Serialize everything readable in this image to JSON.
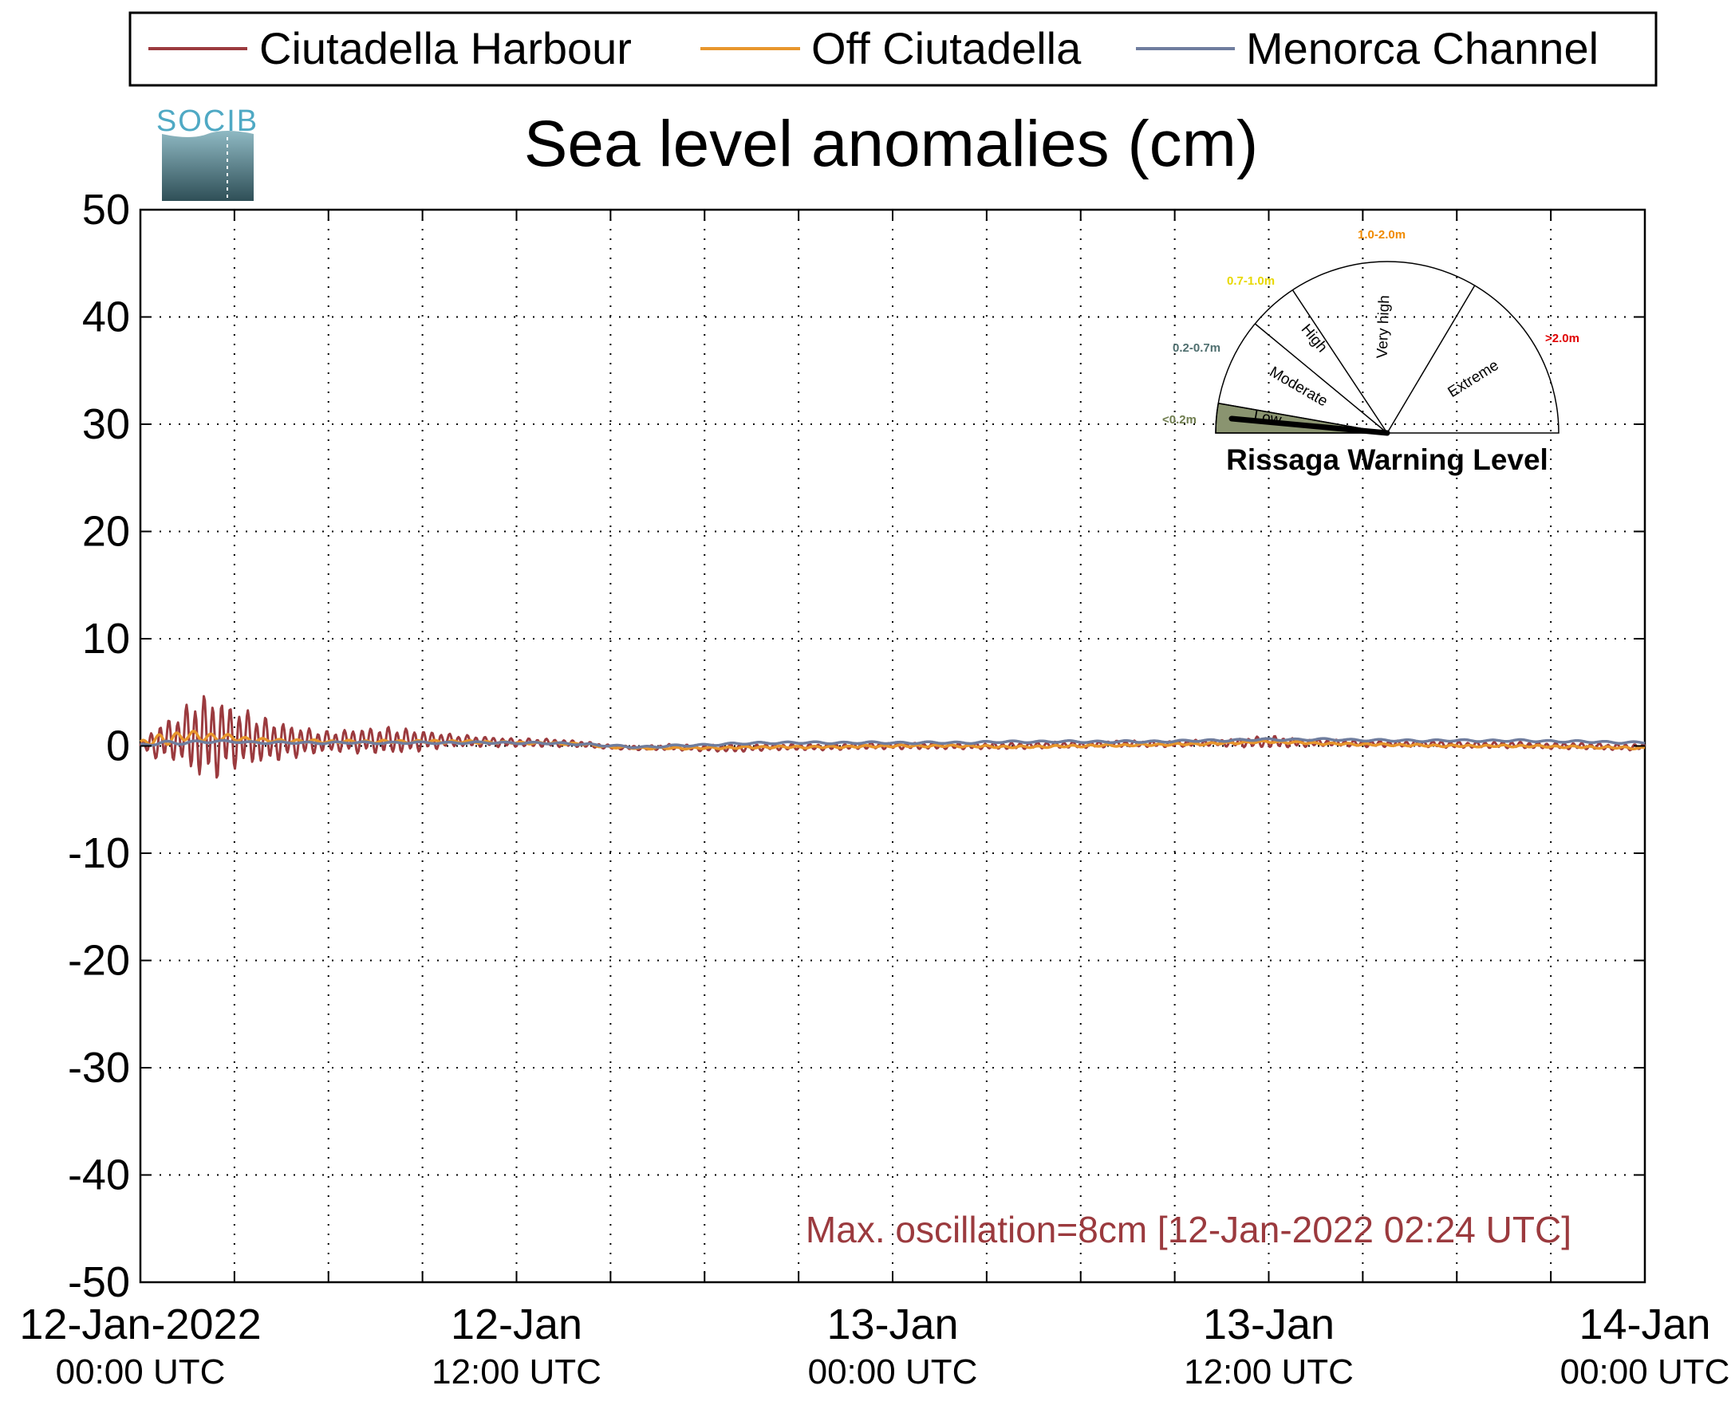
{
  "logo_text": "SOCIB",
  "colors": {
    "harbour": "#9b3a3e",
    "off": "#e8962c",
    "channel": "#6f7d9e",
    "annotation": "#9b3a3e",
    "low_sector": "#8a9470",
    "label_low": "#6f7d4e",
    "label_moderate": "#4f6f6f",
    "label_high": "#e8d800",
    "label_veryhigh": "#f08a00",
    "label_extreme": "#e00000"
  },
  "legend": {
    "items": [
      {
        "label": "Ciutadella Harbour",
        "color": "#9b3a3e"
      },
      {
        "label": "Off Ciutadella",
        "color": "#e8962c"
      },
      {
        "label": "Menorca Channel",
        "color": "#6f7d9e"
      }
    ]
  },
  "chart_data": {
    "type": "line",
    "title": "Sea level anomalies (cm)",
    "xlabel": "",
    "ylabel": "",
    "ylim": [
      -50,
      50
    ],
    "yticks": [
      50,
      40,
      30,
      20,
      10,
      0,
      -10,
      -20,
      -30,
      -40,
      -50
    ],
    "xlim_hours": [
      0,
      48
    ],
    "grid": true,
    "legend_position": "top",
    "x_ticks": [
      {
        "line1": "12-Jan-2022",
        "line2": "00:00 UTC"
      },
      {
        "line1": "12-Jan",
        "line2": "12:00 UTC"
      },
      {
        "line1": "13-Jan",
        "line2": "00:00 UTC"
      },
      {
        "line1": "13-Jan",
        "line2": "12:00 UTC"
      },
      {
        "line1": "14-Jan",
        "line2": "00:00 UTC"
      }
    ],
    "series": [
      {
        "name": "Ciutadella Harbour",
        "color": "#9b3a3e",
        "envelope": {
          "x": [
            0,
            0.3,
            0.8,
            1.2,
            1.8,
            2.4,
            3,
            3.5,
            4,
            5,
            6,
            7,
            8,
            9,
            10,
            11,
            12,
            13,
            14,
            15,
            16,
            17,
            18,
            19,
            20,
            21,
            22,
            23,
            24,
            25,
            26,
            27,
            28,
            29,
            30,
            31,
            32,
            33,
            34,
            35,
            36,
            37,
            38,
            39,
            40,
            41,
            42,
            43,
            44,
            45,
            46,
            47,
            48
          ],
          "mean": [
            0,
            0.2,
            0.5,
            0.8,
            0.9,
            0.8,
            0.8,
            0.7,
            0.5,
            0.4,
            0.4,
            0.5,
            0.5,
            0.5,
            0.5,
            0.4,
            0.3,
            0.3,
            0.2,
            -0.1,
            -0.2,
            -0.1,
            -0.2,
            -0.2,
            -0.1,
            -0.1,
            -0.1,
            0.0,
            0.0,
            0.0,
            0.0,
            0.0,
            0.0,
            0.1,
            0.1,
            0.2,
            0.2,
            0.2,
            0.3,
            0.3,
            0.4,
            0.3,
            0.3,
            0.2,
            0.2,
            0.2,
            0.1,
            0.1,
            0.1,
            0.0,
            0.0,
            -0.1,
            -0.1
          ],
          "amplitude": [
            0.3,
            1.2,
            2.0,
            2.2,
            4.0,
            4.0,
            3.0,
            2.6,
            2.2,
            1.5,
            1.0,
            1.2,
            1.3,
            1.0,
            0.6,
            0.5,
            0.4,
            0.4,
            0.3,
            0.2,
            0.2,
            0.3,
            0.3,
            0.4,
            0.3,
            0.3,
            0.3,
            0.3,
            0.3,
            0.3,
            0.3,
            0.3,
            0.3,
            0.3,
            0.3,
            0.3,
            0.3,
            0.3,
            0.3,
            0.4,
            0.6,
            0.4,
            0.3,
            0.3,
            0.3,
            0.3,
            0.3,
            0.3,
            0.3,
            0.3,
            0.3,
            0.3,
            0.3
          ]
        }
      },
      {
        "name": "Off Ciutadella",
        "color": "#e8962c",
        "envelope": {
          "x": [
            0,
            0.5,
            1,
            1.5,
            2,
            3,
            4,
            6,
            8,
            10,
            12,
            14,
            15,
            16,
            18,
            20,
            22,
            24,
            26,
            28,
            30,
            32,
            34,
            36,
            38,
            40,
            42,
            44,
            46,
            48
          ],
          "mean": [
            0.2,
            0.5,
            0.8,
            0.9,
            0.9,
            0.7,
            0.5,
            0.4,
            0.4,
            0.4,
            0.3,
            0.2,
            -0.1,
            -0.2,
            -0.2,
            -0.1,
            -0.1,
            0.0,
            0.0,
            -0.1,
            0.0,
            0.1,
            0.2,
            0.4,
            0.2,
            0.1,
            0.0,
            0.0,
            -0.1,
            -0.2
          ],
          "amplitude": [
            0.3,
            0.6,
            0.6,
            0.5,
            0.5,
            0.3,
            0.2,
            0.15,
            0.15,
            0.15,
            0.1,
            0.1,
            0.1,
            0.1,
            0.1,
            0.1,
            0.1,
            0.1,
            0.1,
            0.1,
            0.1,
            0.1,
            0.1,
            0.1,
            0.1,
            0.1,
            0.1,
            0.1,
            0.1,
            0.1
          ]
        }
      },
      {
        "name": "Menorca Channel",
        "color": "#6f7d9e",
        "envelope": {
          "x": [
            0,
            0.5,
            1,
            2,
            3,
            4,
            6,
            8,
            10,
            12,
            14,
            15,
            16,
            18,
            20,
            22,
            24,
            26,
            28,
            30,
            32,
            34,
            36,
            38,
            40,
            42,
            44,
            46,
            48
          ],
          "mean": [
            0.1,
            0.2,
            0.3,
            0.4,
            0.4,
            0.3,
            0.3,
            0.3,
            0.3,
            0.3,
            0.2,
            0.0,
            -0.1,
            0.1,
            0.3,
            0.3,
            0.3,
            0.3,
            0.4,
            0.4,
            0.4,
            0.5,
            0.6,
            0.6,
            0.5,
            0.5,
            0.5,
            0.4,
            0.3
          ],
          "amplitude": [
            0.1,
            0.2,
            0.2,
            0.15,
            0.1,
            0.1,
            0.1,
            0.1,
            0.1,
            0.1,
            0.1,
            0.1,
            0.1,
            0.1,
            0.1,
            0.1,
            0.1,
            0.1,
            0.1,
            0.1,
            0.1,
            0.1,
            0.1,
            0.1,
            0.1,
            0.1,
            0.1,
            0.1,
            0.1
          ]
        }
      }
    ],
    "annotation": "Max. oscillation=8cm [12-Jan-2022 02:24 UTC]"
  },
  "gauge": {
    "title": "Rissaga Warning Level",
    "current_level": "Low",
    "sectors": [
      {
        "label": "Low",
        "range": "<0.2m"
      },
      {
        "label": "Moderate",
        "range": "0.2-0.7m"
      },
      {
        "label": "High",
        "range": "0.7-1.0m"
      },
      {
        "label": "Very high",
        "range": "1.0-2.0m"
      },
      {
        "label": "Extreme",
        "range": ">2.0m"
      }
    ]
  }
}
